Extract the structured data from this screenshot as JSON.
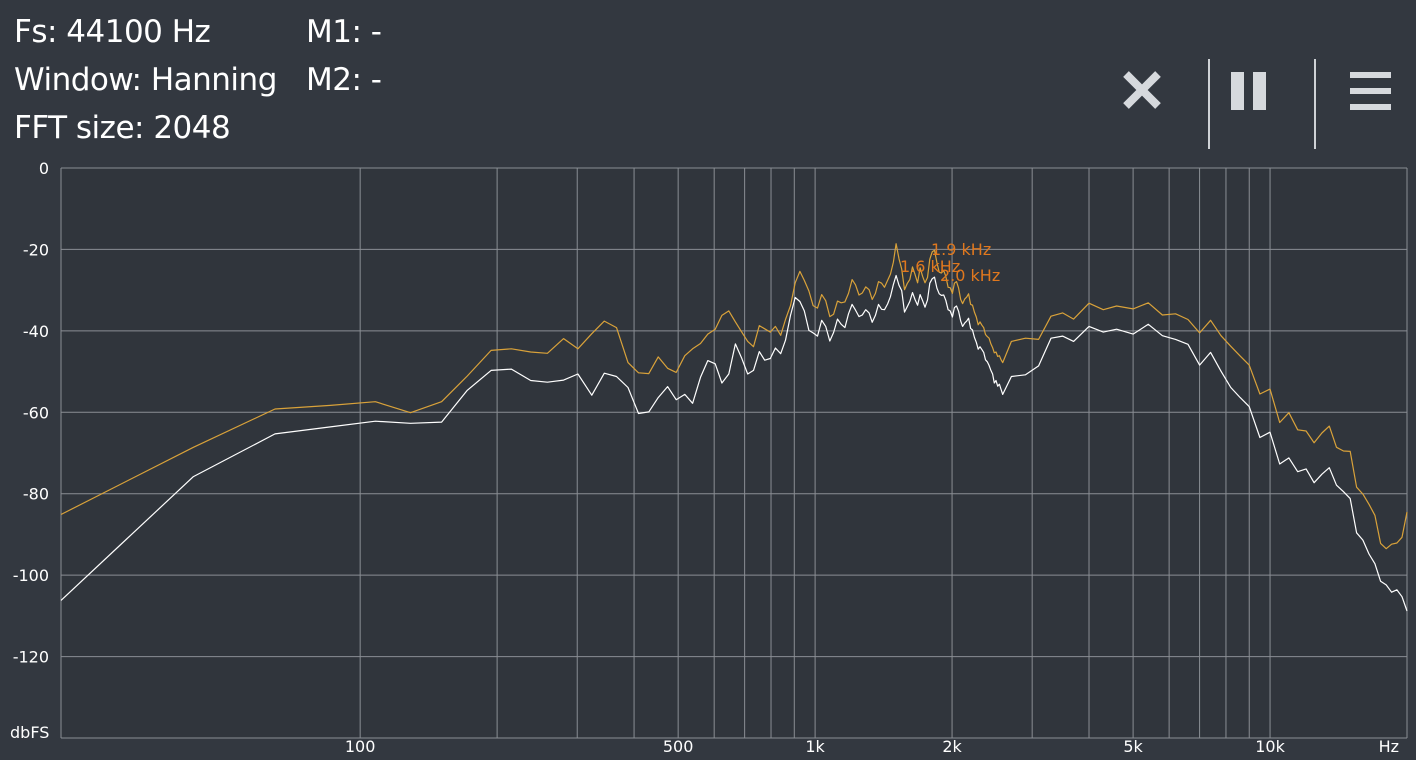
{
  "info": {
    "fs": "Fs: 44100 Hz",
    "window": "Window: Hanning",
    "fft_size": "FFT size: 2048",
    "m1": "M1: -",
    "m2": "M2: -"
  },
  "toolbar": {
    "close_icon": "close-icon",
    "pause_icon": "pause-icon",
    "menu_icon": "menu-icon"
  },
  "colors": {
    "background": "#333840",
    "plot_background": "#30353c",
    "grid": "#8a8e94",
    "series_peak": "#d9a23a",
    "series_current": "#ffffff",
    "marker_label": "#e0781e"
  },
  "chart_data": {
    "type": "line",
    "x_scale": "log",
    "xlim": [
      22,
      20000
    ],
    "ylim": [
      -140,
      0
    ],
    "grid": true,
    "xlabel": "Hz",
    "ylabel": "dbFS",
    "y_ticks": [
      0,
      -20,
      -40,
      -60,
      -80,
      -100,
      -120
    ],
    "y_tick_labels": [
      "0",
      "-20",
      "-40",
      "-60",
      "-80",
      "-100",
      "-120"
    ],
    "x_grid_lines": [
      100,
      200,
      300,
      400,
      500,
      600,
      700,
      800,
      900,
      1000,
      2000,
      3000,
      4000,
      5000,
      6000,
      7000,
      8000,
      9000,
      10000,
      20000
    ],
    "x_tick_labels": [
      {
        "value": 100,
        "label": "100"
      },
      {
        "value": 500,
        "label": "500"
      },
      {
        "value": 1000,
        "label": "1k"
      },
      {
        "value": 2000,
        "label": "2k"
      },
      {
        "value": 5000,
        "label": "5k"
      },
      {
        "value": 10000,
        "label": "10k"
      }
    ],
    "series": [
      {
        "color": "#d9a23a",
        "x": [
          22,
          43,
          65,
          86,
          108,
          129,
          151,
          172,
          194,
          215,
          237,
          258,
          280,
          301,
          323,
          344,
          366,
          388,
          409,
          431,
          452,
          474,
          495,
          517,
          538,
          560,
          581,
          603,
          624,
          646,
          668,
          689,
          711,
          732,
          754,
          775,
          797,
          818,
          840,
          861,
          883,
          904,
          926,
          947,
          969,
          990,
          1012,
          1034,
          1055,
          1077,
          1098,
          1120,
          1141,
          1163,
          1184,
          1206,
          1227,
          1249,
          1270,
          1292,
          1314,
          1335,
          1357,
          1378,
          1400,
          1421,
          1443,
          1464,
          1486,
          1507,
          1529,
          1550,
          1572,
          1594,
          1615,
          1637,
          1658,
          1680,
          1701,
          1723,
          1744,
          1766,
          1787,
          1809,
          1830,
          1852,
          1874,
          1895,
          1917,
          1938,
          1960,
          1981,
          2003,
          2024,
          2046,
          2067,
          2089,
          2110,
          2132,
          2154,
          2175,
          2197,
          2218,
          2240,
          2261,
          2283,
          2304,
          2326,
          2347,
          2369,
          2390,
          2412,
          2434,
          2455,
          2477,
          2498,
          2520,
          2541,
          2563,
          2584,
          2700,
          2900,
          3100,
          3300,
          3500,
          3700,
          4000,
          4300,
          4600,
          5000,
          5400,
          5800,
          6200,
          6600,
          7000,
          7400,
          7800,
          8200,
          8600,
          9000,
          9500,
          10000,
          10500,
          11000,
          11500,
          12000,
          12500,
          13000,
          13500,
          14000,
          14500,
          15000,
          15500,
          16000,
          16500,
          17000,
          17500,
          18000,
          18500,
          19000,
          19500,
          20000
        ],
        "y": [
          -85.1,
          -68.6,
          -59.2,
          -58.3,
          -57.4,
          -60.1,
          -57.4,
          -51.1,
          -44.8,
          -44.4,
          -45.2,
          -45.5,
          -41.9,
          -44.4,
          -40.7,
          -37.6,
          -39.2,
          -47.8,
          -50.3,
          -50.5,
          -46.4,
          -49.2,
          -50.2,
          -46.1,
          -44.4,
          -43.1,
          -40.8,
          -39.6,
          -36.2,
          -35.1,
          -37.8,
          -40.2,
          -42.6,
          -43.9,
          -38.7,
          -39.5,
          -40.3,
          -38.9,
          -41.1,
          -37.2,
          -33.8,
          -28.2,
          -25.4,
          -27.6,
          -30.2,
          -33.8,
          -34.4,
          -31.1,
          -32.6,
          -36.5,
          -35.9,
          -32.7,
          -33.1,
          -32.9,
          -30.8,
          -27.4,
          -28.7,
          -31.2,
          -30.7,
          -29.2,
          -29.9,
          -32.3,
          -30.8,
          -27.9,
          -28.3,
          -29.3,
          -27.6,
          -26.1,
          -23.1,
          -18.6,
          -22.3,
          -24.8,
          -29.9,
          -28.4,
          -27.4,
          -24.3,
          -26.1,
          -28.2,
          -24.5,
          -26.6,
          -28.2,
          -26.9,
          -22.4,
          -20.6,
          -20.2,
          -23.2,
          -25.6,
          -25.8,
          -25.2,
          -26.6,
          -29.3,
          -29.4,
          -30.8,
          -28.3,
          -27.9,
          -29.5,
          -32.3,
          -33.3,
          -32.2,
          -31.7,
          -30.9,
          -33.5,
          -33.7,
          -35.4,
          -36.6,
          -38.5,
          -37.8,
          -38.6,
          -39.2,
          -40.9,
          -41.4,
          -41.8,
          -43.2,
          -44.1,
          -45.4,
          -45.2,
          -46.3,
          -46.1,
          -47.1,
          -47.8,
          -42.6,
          -41.8,
          -42.1,
          -36.4,
          -35.6,
          -37.1,
          -33.2,
          -34.8,
          -33.9,
          -34.6,
          -33.1,
          -36.1,
          -35.8,
          -37.2,
          -40.5,
          -37.4,
          -41.2,
          -43.8,
          -46.2,
          -48.4,
          -55.5,
          -54.3,
          -62.5,
          -60.1,
          -64.3,
          -64.6,
          -67.5,
          -65.1,
          -63.4,
          -68.6,
          -69.5,
          -69.6,
          -78.4,
          -80.1,
          -82.6,
          -85.3,
          -92.2,
          -93.5,
          -92.4,
          -92.1,
          -90.7,
          -84.5
        ]
      },
      {
        "color": "#ffffff",
        "x": [
          22,
          43,
          65,
          86,
          108,
          129,
          151,
          172,
          194,
          215,
          237,
          258,
          280,
          301,
          323,
          344,
          366,
          388,
          409,
          431,
          452,
          474,
          495,
          517,
          538,
          560,
          581,
          603,
          624,
          646,
          668,
          689,
          711,
          732,
          754,
          775,
          797,
          818,
          840,
          861,
          883,
          904,
          926,
          947,
          969,
          990,
          1012,
          1034,
          1055,
          1077,
          1098,
          1120,
          1141,
          1163,
          1184,
          1206,
          1227,
          1249,
          1270,
          1292,
          1314,
          1335,
          1357,
          1378,
          1400,
          1421,
          1443,
          1464,
          1486,
          1507,
          1529,
          1550,
          1572,
          1594,
          1615,
          1637,
          1658,
          1680,
          1701,
          1723,
          1744,
          1766,
          1787,
          1809,
          1830,
          1852,
          1874,
          1895,
          1917,
          1938,
          1960,
          1981,
          2003,
          2024,
          2046,
          2067,
          2089,
          2110,
          2132,
          2154,
          2175,
          2197,
          2218,
          2240,
          2261,
          2283,
          2304,
          2326,
          2347,
          2369,
          2390,
          2412,
          2434,
          2455,
          2477,
          2498,
          2520,
          2541,
          2563,
          2584,
          2700,
          2900,
          3100,
          3300,
          3500,
          3700,
          4000,
          4300,
          4600,
          5000,
          5400,
          5800,
          6200,
          6600,
          7000,
          7400,
          7800,
          8200,
          8600,
          9000,
          9500,
          10000,
          10500,
          11000,
          11500,
          12000,
          12500,
          13000,
          13500,
          14000,
          14500,
          15000,
          15500,
          16000,
          16500,
          17000,
          17500,
          18000,
          18500,
          19000,
          19500,
          20000
        ],
        "y": [
          -106.2,
          -75.8,
          -65.3,
          -63.6,
          -62.2,
          -62.7,
          -62.4,
          -54.6,
          -49.7,
          -49.4,
          -52.2,
          -52.6,
          -52.1,
          -50.6,
          -55.8,
          -50.4,
          -51.2,
          -53.9,
          -60.3,
          -59.9,
          -56.4,
          -53.7,
          -56.9,
          -55.6,
          -57.8,
          -51.4,
          -47.3,
          -48.1,
          -52.8,
          -50.6,
          -43.2,
          -46.6,
          -50.6,
          -49.7,
          -45.1,
          -47.2,
          -46.8,
          -44.2,
          -45.6,
          -42.3,
          -36.2,
          -31.8,
          -32.8,
          -35.1,
          -39.9,
          -40.5,
          -41.3,
          -37.4,
          -38.9,
          -42.5,
          -40.4,
          -37.1,
          -38.4,
          -39.2,
          -35.8,
          -33.5,
          -34.9,
          -36.5,
          -36.1,
          -34.8,
          -35.6,
          -37.9,
          -36.2,
          -33.5,
          -34.7,
          -34.8,
          -33.4,
          -31.6,
          -28.6,
          -26.4,
          -28.8,
          -30.1,
          -35.4,
          -34.1,
          -32.8,
          -30.6,
          -32.3,
          -33.7,
          -31.1,
          -32.6,
          -34.2,
          -32.4,
          -28.3,
          -27.2,
          -26.8,
          -29.5,
          -30.9,
          -31.3,
          -31.2,
          -32.5,
          -34.8,
          -35.1,
          -36.6,
          -34.3,
          -33.9,
          -35.2,
          -37.6,
          -38.9,
          -38.1,
          -37.6,
          -36.9,
          -39.4,
          -39.8,
          -41.6,
          -42.8,
          -44.5,
          -43.9,
          -44.6,
          -45.3,
          -47.1,
          -47.6,
          -48.5,
          -49.7,
          -50.6,
          -52.8,
          -52.2,
          -53.6,
          -53.1,
          -54.4,
          -55.6,
          -51.2,
          -50.8,
          -48.6,
          -41.8,
          -41.3,
          -42.6,
          -38.9,
          -40.3,
          -39.6,
          -40.8,
          -38.4,
          -41.2,
          -42.1,
          -43.3,
          -48.4,
          -45.3,
          -49.9,
          -53.9,
          -56.4,
          -58.6,
          -66.2,
          -64.9,
          -72.7,
          -71.2,
          -74.6,
          -73.9,
          -77.3,
          -75.2,
          -73.6,
          -77.9,
          -79.5,
          -81.2,
          -89.6,
          -91.4,
          -94.8,
          -97.2,
          -101.5,
          -102.4,
          -104.2,
          -103.6,
          -105.3,
          -108.8
        ]
      }
    ],
    "markers": [
      {
        "label": "1.9  kHz"
      },
      {
        "label": "1.6  kHz"
      },
      {
        "label": "2.0  kHz"
      }
    ]
  }
}
